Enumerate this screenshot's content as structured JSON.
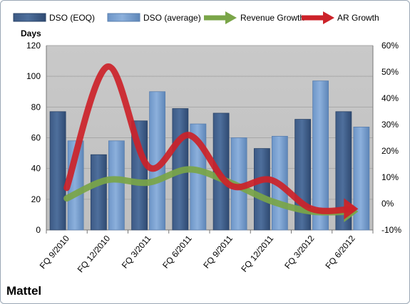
{
  "company": "Mattel",
  "colors": {
    "plot_bg": "#bfbfbf",
    "eoq_bar": "#4e6f9c",
    "avg_bar": "#8cb0dc",
    "revenue_line": "#7aa548",
    "ar_line": "#cc2229"
  },
  "chart_data": {
    "type": "bar",
    "ylabel": "Days",
    "ylim": [
      0,
      120
    ],
    "y_ticks": [
      "0",
      "20",
      "40",
      "60",
      "80",
      "100",
      "120"
    ],
    "y2lim": [
      -10,
      60
    ],
    "y2_ticks": [
      "-10%",
      "0%",
      "10%",
      "20%",
      "30%",
      "40%",
      "50%",
      "60%"
    ],
    "legend_position": "top",
    "grid": true,
    "categories": [
      "FQ 9/2010",
      "FQ 12/2010",
      "FQ 3/2011",
      "FQ 6/2011",
      "FQ 9/2011",
      "FQ 12/2011",
      "FQ 3/2012",
      "FQ 6/2012"
    ],
    "series": [
      {
        "name": "DSO (EOQ)",
        "type": "bar",
        "axis": "left",
        "values": [
          77,
          49,
          71,
          79,
          76,
          53,
          72,
          77
        ]
      },
      {
        "name": "DSO (average)",
        "type": "bar",
        "axis": "left",
        "values": [
          58,
          58,
          90,
          69,
          60,
          61,
          97,
          67
        ]
      },
      {
        "name": "Revenue Growth",
        "type": "line",
        "axis": "right",
        "values": [
          2,
          9,
          8,
          13,
          8,
          1,
          -3,
          -3
        ]
      },
      {
        "name": "AR Growth",
        "type": "line",
        "axis": "right",
        "values": [
          6,
          52,
          14,
          26,
          7,
          9,
          -2,
          -2
        ]
      }
    ]
  }
}
